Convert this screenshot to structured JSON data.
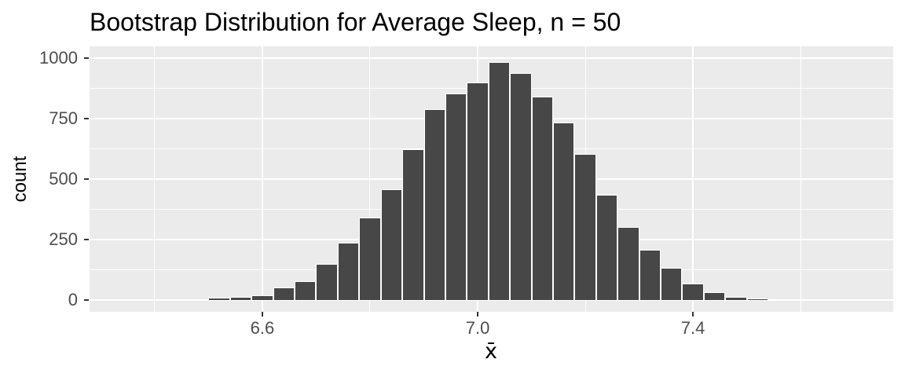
{
  "title": "Bootstrap Distribution for Average Sleep, n = 50",
  "axes": {
    "x": {
      "label": "x̄",
      "ticks": [
        6.6,
        7.0,
        7.4
      ],
      "tick_labels": [
        "6.6",
        "7.0",
        "7.4"
      ],
      "minor_breaks": [
        6.4,
        6.8,
        7.2,
        7.6
      ],
      "domain": [
        6.279,
        7.772
      ]
    },
    "y": {
      "label": "count",
      "ticks": [
        0,
        250,
        500,
        750,
        1000
      ],
      "tick_labels": [
        "0",
        "250",
        "500",
        "750",
        "1000"
      ],
      "minor_breaks": [
        125,
        375,
        625,
        875
      ],
      "domain": [
        -48.7,
        1048.7
      ]
    }
  },
  "colors": {
    "bar_fill": "#474747",
    "bar_border": "#FFFFFF",
    "panel_background": "#EBEBEB",
    "gridline": "#FFFFFF",
    "axis_text": "#4D4D4D",
    "title_text": "#000000",
    "tick_mark": "#333333"
  },
  "chart_data": {
    "type": "bar",
    "title": "Bootstrap Distribution for Average Sleep, n = 50",
    "xlabel": "x̄",
    "ylabel": "count",
    "binwidth": 0.04,
    "bin_centers": [
      6.36,
      6.4,
      6.44,
      6.48,
      6.52,
      6.56,
      6.6,
      6.64,
      6.68,
      6.72,
      6.76,
      6.8,
      6.84,
      6.88,
      6.92,
      6.96,
      7.0,
      7.04,
      7.08,
      7.12,
      7.16,
      7.2,
      7.24,
      7.28,
      7.32,
      7.36,
      7.4,
      7.44,
      7.48,
      7.52,
      7.56,
      7.6,
      7.64,
      7.68
    ],
    "counts": [
      2,
      1,
      3,
      4,
      9,
      14,
      21,
      52,
      77,
      150,
      237,
      340,
      459,
      623,
      790,
      855,
      900,
      985,
      939,
      840,
      733,
      605,
      435,
      303,
      208,
      132,
      68,
      34,
      12,
      5,
      0,
      0,
      2,
      1
    ],
    "xlim": [
      6.279,
      7.772
    ],
    "ylim": [
      0,
      1050
    ],
    "grid": true,
    "legend": "none"
  }
}
